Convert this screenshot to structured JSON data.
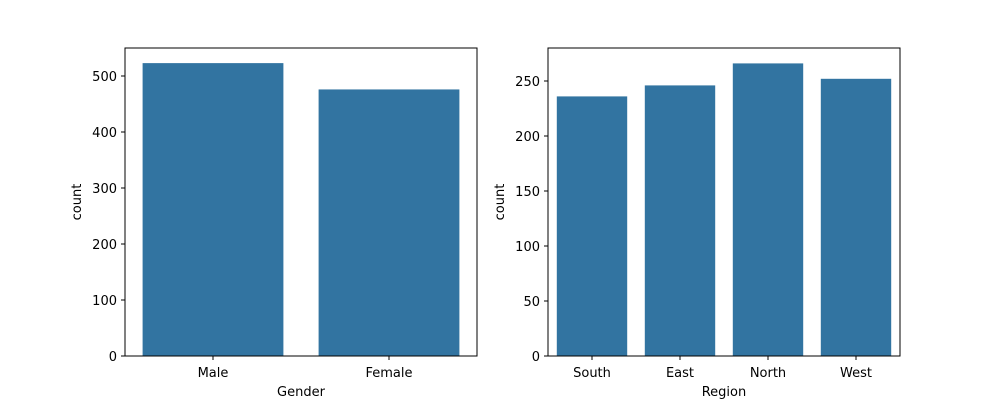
{
  "chart_data": [
    {
      "type": "bar",
      "categories": [
        "Male",
        "Female"
      ],
      "values": [
        523,
        476
      ],
      "xlabel": "Gender",
      "ylabel": "count",
      "ylim": [
        0,
        550
      ],
      "yticks": [
        0,
        100,
        200,
        300,
        400,
        500
      ],
      "grid": false,
      "color": "#3274a1"
    },
    {
      "type": "bar",
      "categories": [
        "South",
        "East",
        "North",
        "West"
      ],
      "values": [
        236,
        246,
        266,
        252
      ],
      "xlabel": "Region",
      "ylabel": "count",
      "ylim": [
        0,
        280
      ],
      "yticks": [
        0,
        50,
        100,
        150,
        200,
        250
      ],
      "grid": false,
      "color": "#3274a1"
    }
  ]
}
